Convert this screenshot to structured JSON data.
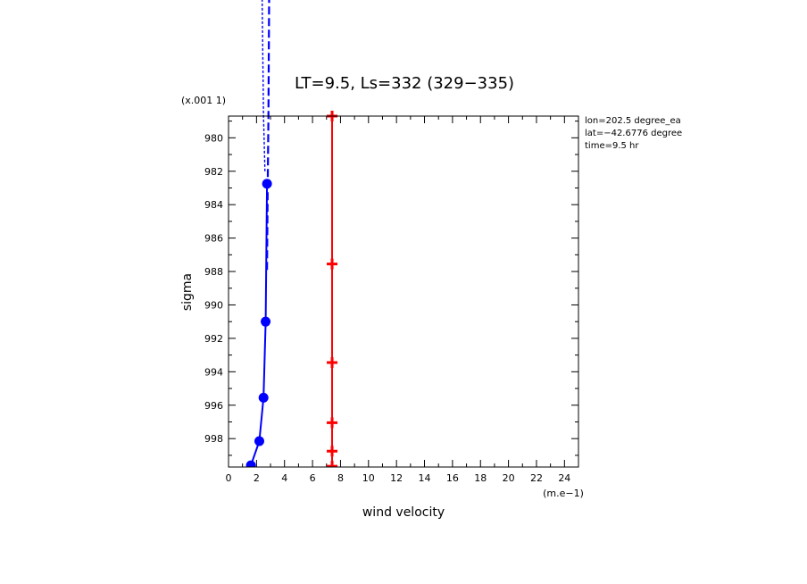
{
  "chart_data": {
    "type": "line",
    "title": "LT=9.5, Ls=332 (329−335)",
    "xlabel": "wind velocity",
    "ylabel": "sigma",
    "x_unit": "(m.e−1)",
    "y_unit": "(x.001 1)",
    "xlim": [
      0,
      25
    ],
    "ylim": [
      999.7,
      978.7
    ],
    "x_ticks": [
      0,
      2,
      4,
      6,
      8,
      10,
      12,
      14,
      16,
      18,
      20,
      22,
      24
    ],
    "y_ticks": [
      980,
      982,
      984,
      986,
      988,
      990,
      992,
      994,
      996,
      998
    ],
    "info_lines": [
      "lon=202.5 degree_ea",
      "lat=−42.6776 degree",
      "time=9.5 hr"
    ],
    "series": [
      {
        "color": "#0000ff",
        "marker": "circle",
        "x": [
          1.6,
          2.2,
          2.5,
          2.65,
          2.75
        ],
        "y": [
          999.6,
          998.15,
          995.55,
          991.0,
          982.75
        ]
      },
      {
        "color": "#0000ff",
        "marker": "none",
        "style": "dashed",
        "x": [
          2.75,
          2.8,
          2.85,
          2.9
        ],
        "y": [
          987.9,
          982.8,
          978.7,
          971.5
        ]
      },
      {
        "color": "#0000ff",
        "marker": "none",
        "style": "dotted",
        "x": [
          2.6,
          2.5,
          2.4
        ],
        "y": [
          982.0,
          978.7,
          971.5
        ]
      },
      {
        "color": "#ff0000",
        "marker": "plus",
        "x": [
          7.4,
          7.4,
          7.4,
          7.4,
          7.4,
          7.4
        ],
        "y": [
          978.7,
          987.55,
          993.45,
          997.05,
          998.75,
          999.65
        ]
      }
    ]
  }
}
